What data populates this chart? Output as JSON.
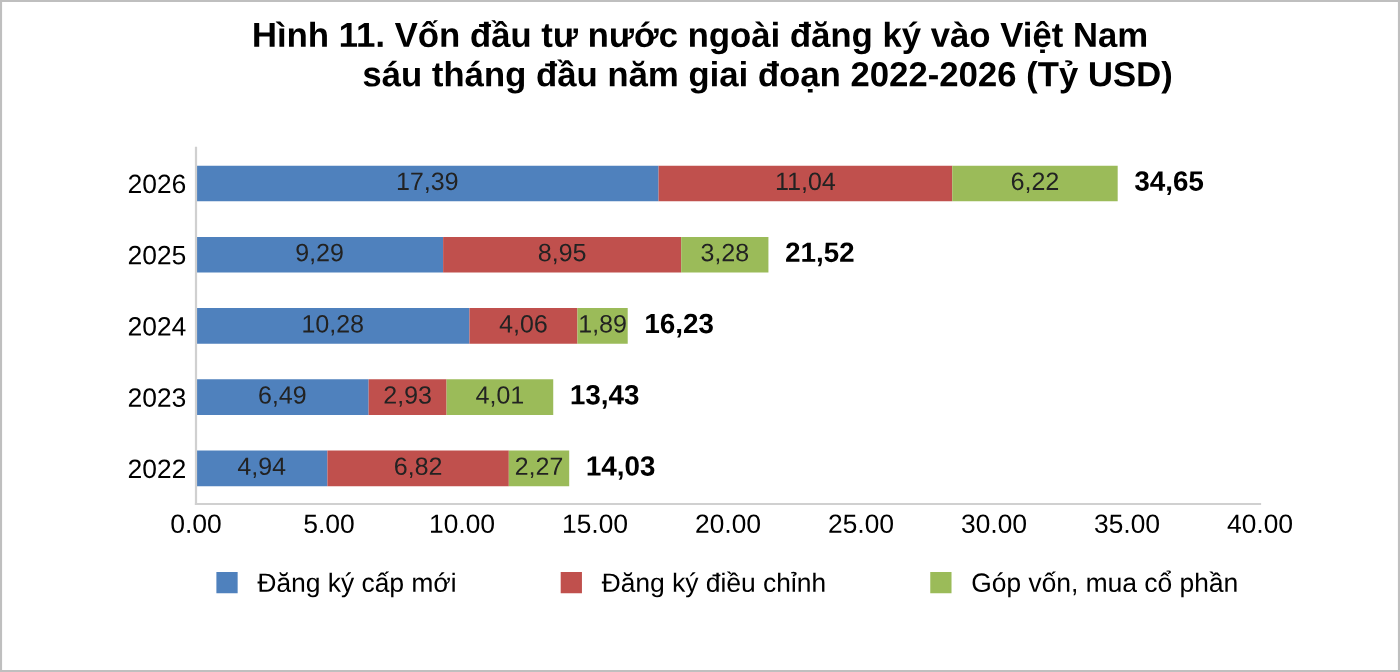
{
  "chart_data": {
    "type": "bar",
    "orientation": "horizontal",
    "stacked": true,
    "title": "Hình 11. Vốn đầu tư nước ngoài đăng ký vào Việt Nam\n              sáu tháng đầu năm giai đoạn 2022-2026 (Tỷ USD)",
    "categories": [
      "2026",
      "2025",
      "2024",
      "2023",
      "2022"
    ],
    "series": [
      {
        "name": "Đăng ký cấp mới",
        "color": "#4f81bd",
        "values": [
          17.39,
          9.29,
          10.28,
          6.49,
          4.94
        ],
        "value_labels": [
          "17,39",
          "9,29",
          "10,28",
          "6,49",
          "4,94"
        ]
      },
      {
        "name": "Đăng ký điều chỉnh",
        "color": "#c0504d",
        "values": [
          11.04,
          8.95,
          4.06,
          2.93,
          6.82
        ],
        "value_labels": [
          "11,04",
          "8,95",
          "4,06",
          "2,93",
          "6,82"
        ]
      },
      {
        "name": "Góp vốn, mua cổ phần",
        "color": "#9bbb59",
        "values": [
          6.22,
          3.28,
          1.89,
          4.01,
          2.27
        ],
        "value_labels": [
          "6,22",
          "3,28",
          "1,89",
          "4,01",
          "2,27"
        ]
      }
    ],
    "totals": [
      "34,65",
      "21,52",
      "16,23",
      "13,43",
      "14,03"
    ],
    "xlim": [
      0,
      40
    ],
    "xticks": [
      {
        "value": 0,
        "label": "0.00"
      },
      {
        "value": 5,
        "label": "5.00"
      },
      {
        "value": 10,
        "label": "10.00"
      },
      {
        "value": 15,
        "label": "15.00"
      },
      {
        "value": 20,
        "label": "20.00"
      },
      {
        "value": 25,
        "label": "25.00"
      },
      {
        "value": 30,
        "label": "30.00"
      },
      {
        "value": 35,
        "label": "35.00"
      },
      {
        "value": 40,
        "label": "40.00"
      }
    ],
    "grid": false,
    "legend": "bottom"
  }
}
